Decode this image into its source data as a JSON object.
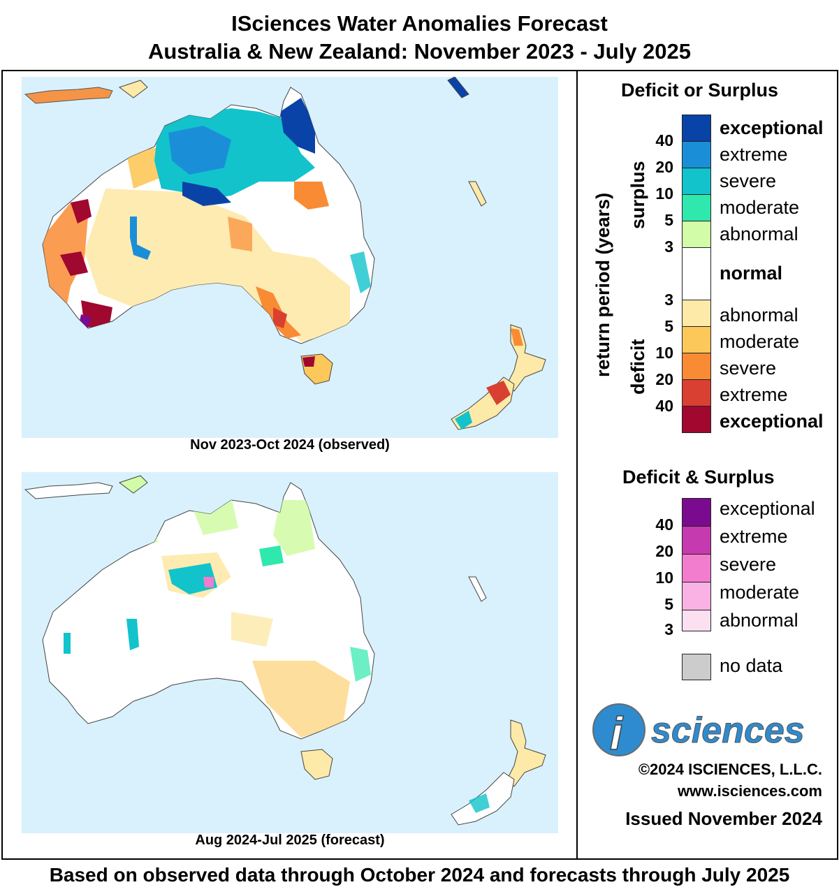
{
  "title": {
    "line1": "ISciences Water Anomalies Forecast",
    "line2": "Australia & New Zealand: November 2023 - July 2025"
  },
  "maps": [
    {
      "caption": "Nov 2023-Oct 2024 (observed)"
    },
    {
      "caption": "Aug 2024-Jul 2025 (forecast)"
    }
  ],
  "legend": {
    "title1": "Deficit or Surplus",
    "axis_label": "return period (years)",
    "surplus_label": "surplus",
    "deficit_label": "deficit",
    "surplus_items": [
      {
        "label": "exceptional",
        "color": "#0a43a8",
        "bold": true
      },
      {
        "label": "extreme",
        "color": "#1a8fd8",
        "bold": false
      },
      {
        "label": "severe",
        "color": "#12c3cc",
        "bold": false
      },
      {
        "label": "moderate",
        "color": "#2ee8ad",
        "bold": false
      },
      {
        "label": "abnormal",
        "color": "#d3fca8",
        "bold": false
      }
    ],
    "normal_label": "normal",
    "deficit_items": [
      {
        "label": "abnormal",
        "color": "#fde9a8",
        "bold": false
      },
      {
        "label": "moderate",
        "color": "#fdc85a",
        "bold": false
      },
      {
        "label": "severe",
        "color": "#f98b34",
        "bold": false
      },
      {
        "label": "extreme",
        "color": "#d94032",
        "bold": false
      },
      {
        "label": "exceptional",
        "color": "#a0082f",
        "bold": true
      }
    ],
    "surplus_ticks": [
      "40",
      "20",
      "10",
      "5",
      "3"
    ],
    "deficit_ticks": [
      "3",
      "5",
      "10",
      "20",
      "40"
    ],
    "title2": "Deficit & Surplus",
    "both_items": [
      {
        "label": "exceptional",
        "color": "#7a0b8e"
      },
      {
        "label": "extreme",
        "color": "#c53aaf"
      },
      {
        "label": "severe",
        "color": "#f27ccd"
      },
      {
        "label": "moderate",
        "color": "#fab2e4"
      },
      {
        "label": "abnormal",
        "color": "#fde0ef"
      }
    ],
    "both_ticks": [
      "40",
      "20",
      "10",
      "5",
      "3"
    ],
    "nodata_label": "no data",
    "nodata_color": "#cccccc"
  },
  "logo": {
    "letter": "i",
    "text": "sciences",
    "color": "#2e8bd0"
  },
  "copyright": "©2024 ISCIENCES, L.L.C.",
  "website": "www.isciences.com",
  "issued": "Issued November 2024",
  "footer": "Based on observed data through October 2024 and forecasts through July 2025"
}
